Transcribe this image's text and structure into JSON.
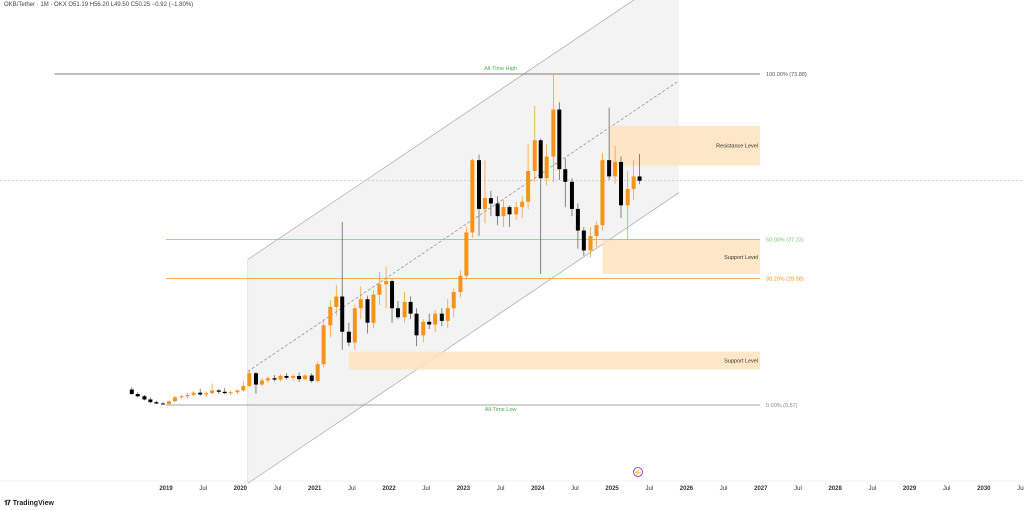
{
  "header": {
    "symbol": "OKB/Tether",
    "interval": "1M",
    "exchange": "OKX",
    "ohlc": "O51.19 H56.20 L49.50 C50.25 −0.92 (−1.80%)"
  },
  "brand": {
    "name": "TradingView",
    "icon": "tradingview-logo-icon"
  },
  "colors": {
    "up": "#f7931a",
    "down": "#000000",
    "channel_fill": "#efefef",
    "zone_fill": "#fde3bd",
    "fib_100": "#555555",
    "fib_50": "#7cc47c",
    "fib_382": "#f7931a",
    "fib_0": "#888888",
    "annotation_green": "#4caf50",
    "event_icon": "#9c27b0"
  },
  "event_marker": {
    "label": "⚡",
    "icon": "lightning-event-icon"
  },
  "chart_data": {
    "type": "candlestick",
    "x_axis": {
      "ticks": [
        {
          "label": "2019",
          "t": 2019.0
        },
        {
          "label": "Jul",
          "t": 2019.5
        },
        {
          "label": "2020",
          "t": 2020.0
        },
        {
          "label": "Jul",
          "t": 2020.5
        },
        {
          "label": "2021",
          "t": 2021.0
        },
        {
          "label": "Jul",
          "t": 2021.5
        },
        {
          "label": "2022",
          "t": 2022.0
        },
        {
          "label": "Jul",
          "t": 2022.5
        },
        {
          "label": "2023",
          "t": 2023.0
        },
        {
          "label": "Jul",
          "t": 2023.5
        },
        {
          "label": "2024",
          "t": 2024.0
        },
        {
          "label": "Jul",
          "t": 2024.5
        },
        {
          "label": "2025",
          "t": 2025.0
        },
        {
          "label": "Jul",
          "t": 2025.5
        },
        {
          "label": "2026",
          "t": 2026.0
        },
        {
          "label": "Jul",
          "t": 2026.5
        },
        {
          "label": "2027",
          "t": 2027.0
        },
        {
          "label": "Jul",
          "t": 2027.5
        },
        {
          "label": "2028",
          "t": 2028.0
        },
        {
          "label": "Jul",
          "t": 2028.5
        },
        {
          "label": "2029",
          "t": 2029.0
        },
        {
          "label": "Jul",
          "t": 2029.5
        },
        {
          "label": "2030",
          "t": 2030.0
        },
        {
          "label": "Jul",
          "t": 2030.5
        }
      ]
    },
    "candles": [
      {
        "t": 2018.54,
        "o": 4.0,
        "h": 4.5,
        "l": 2.8,
        "c": 3.0
      },
      {
        "t": 2018.62,
        "o": 3.0,
        "h": 3.4,
        "l": 2.3,
        "c": 2.5
      },
      {
        "t": 2018.71,
        "o": 2.5,
        "h": 2.8,
        "l": 1.6,
        "c": 1.8
      },
      {
        "t": 2018.79,
        "o": 1.8,
        "h": 2.2,
        "l": 1.0,
        "c": 1.2
      },
      {
        "t": 2018.87,
        "o": 1.2,
        "h": 1.5,
        "l": 0.8,
        "c": 0.9
      },
      {
        "t": 2018.96,
        "o": 0.9,
        "h": 1.2,
        "l": 0.7,
        "c": 0.8
      },
      {
        "t": 2019.04,
        "o": 0.8,
        "h": 1.6,
        "l": 0.7,
        "c": 1.4
      },
      {
        "t": 2019.12,
        "o": 1.4,
        "h": 2.6,
        "l": 1.2,
        "c": 2.3
      },
      {
        "t": 2019.21,
        "o": 2.3,
        "h": 2.8,
        "l": 2.0,
        "c": 2.5
      },
      {
        "t": 2019.29,
        "o": 2.5,
        "h": 3.2,
        "l": 2.1,
        "c": 2.8
      },
      {
        "t": 2019.37,
        "o": 2.8,
        "h": 3.6,
        "l": 2.5,
        "c": 3.3
      },
      {
        "t": 2019.46,
        "o": 3.3,
        "h": 4.2,
        "l": 2.6,
        "c": 2.9
      },
      {
        "t": 2019.54,
        "o": 2.9,
        "h": 3.6,
        "l": 2.2,
        "c": 3.2
      },
      {
        "t": 2019.62,
        "o": 3.2,
        "h": 5.3,
        "l": 2.9,
        "c": 3.8
      },
      {
        "t": 2019.71,
        "o": 3.8,
        "h": 4.1,
        "l": 3.0,
        "c": 3.5
      },
      {
        "t": 2019.79,
        "o": 3.5,
        "h": 4.3,
        "l": 3.0,
        "c": 3.2
      },
      {
        "t": 2019.87,
        "o": 3.2,
        "h": 3.8,
        "l": 2.7,
        "c": 3.4
      },
      {
        "t": 2019.96,
        "o": 3.4,
        "h": 4.0,
        "l": 3.0,
        "c": 3.8
      },
      {
        "t": 2020.04,
        "o": 3.8,
        "h": 5.8,
        "l": 3.5,
        "c": 4.8
      },
      {
        "t": 2020.12,
        "o": 4.8,
        "h": 8.2,
        "l": 4.5,
        "c": 7.6
      },
      {
        "t": 2020.21,
        "o": 7.6,
        "h": 7.9,
        "l": 3.1,
        "c": 5.1
      },
      {
        "t": 2020.29,
        "o": 5.1,
        "h": 6.5,
        "l": 4.8,
        "c": 6.0
      },
      {
        "t": 2020.37,
        "o": 6.0,
        "h": 6.9,
        "l": 5.5,
        "c": 6.5
      },
      {
        "t": 2020.46,
        "o": 6.5,
        "h": 7.2,
        "l": 5.8,
        "c": 6.2
      },
      {
        "t": 2020.54,
        "o": 6.2,
        "h": 7.4,
        "l": 5.8,
        "c": 7.0
      },
      {
        "t": 2020.62,
        "o": 7.0,
        "h": 7.6,
        "l": 6.2,
        "c": 6.6
      },
      {
        "t": 2020.71,
        "o": 6.6,
        "h": 7.3,
        "l": 6.0,
        "c": 7.0
      },
      {
        "t": 2020.79,
        "o": 7.0,
        "h": 7.8,
        "l": 5.7,
        "c": 6.3
      },
      {
        "t": 2020.87,
        "o": 6.3,
        "h": 7.4,
        "l": 6.0,
        "c": 7.1
      },
      {
        "t": 2020.96,
        "o": 7.1,
        "h": 7.6,
        "l": 5.5,
        "c": 5.9
      },
      {
        "t": 2021.04,
        "o": 5.9,
        "h": 10.2,
        "l": 5.6,
        "c": 9.6
      },
      {
        "t": 2021.12,
        "o": 9.6,
        "h": 19.5,
        "l": 9.0,
        "c": 18.2
      },
      {
        "t": 2021.21,
        "o": 18.2,
        "h": 23.8,
        "l": 15.6,
        "c": 22.3
      },
      {
        "t": 2021.29,
        "o": 22.3,
        "h": 27.2,
        "l": 20.4,
        "c": 24.6
      },
      {
        "t": 2021.37,
        "o": 24.6,
        "h": 41.1,
        "l": 12.8,
        "c": 16.8
      },
      {
        "t": 2021.46,
        "o": 16.8,
        "h": 18.8,
        "l": 13.6,
        "c": 14.4
      },
      {
        "t": 2021.54,
        "o": 14.4,
        "h": 22.8,
        "l": 12.8,
        "c": 22.0
      },
      {
        "t": 2021.62,
        "o": 22.0,
        "h": 26.8,
        "l": 19.6,
        "c": 24.0
      },
      {
        "t": 2021.71,
        "o": 24.0,
        "h": 24.8,
        "l": 16.4,
        "c": 18.8
      },
      {
        "t": 2021.79,
        "o": 18.8,
        "h": 26.0,
        "l": 17.6,
        "c": 25.0
      },
      {
        "t": 2021.87,
        "o": 25.0,
        "h": 30.0,
        "l": 22.8,
        "c": 27.3
      },
      {
        "t": 2021.96,
        "o": 27.3,
        "h": 31.2,
        "l": 22.0,
        "c": 28.0
      },
      {
        "t": 2022.04,
        "o": 28.0,
        "h": 28.4,
        "l": 18.8,
        "c": 22.0
      },
      {
        "t": 2022.12,
        "o": 22.0,
        "h": 23.6,
        "l": 19.6,
        "c": 20.0
      },
      {
        "t": 2022.21,
        "o": 20.0,
        "h": 25.6,
        "l": 18.8,
        "c": 23.4
      },
      {
        "t": 2022.29,
        "o": 23.4,
        "h": 24.6,
        "l": 19.6,
        "c": 20.8
      },
      {
        "t": 2022.37,
        "o": 20.8,
        "h": 22.0,
        "l": 13.6,
        "c": 16.0
      },
      {
        "t": 2022.46,
        "o": 16.0,
        "h": 19.6,
        "l": 14.4,
        "c": 19.0
      },
      {
        "t": 2022.54,
        "o": 19.0,
        "h": 20.8,
        "l": 17.4,
        "c": 18.4
      },
      {
        "t": 2022.62,
        "o": 18.4,
        "h": 21.6,
        "l": 16.8,
        "c": 20.8
      },
      {
        "t": 2022.71,
        "o": 20.8,
        "h": 22.0,
        "l": 18.0,
        "c": 19.2
      },
      {
        "t": 2022.79,
        "o": 19.2,
        "h": 24.0,
        "l": 17.6,
        "c": 22.0
      },
      {
        "t": 2022.87,
        "o": 22.0,
        "h": 26.4,
        "l": 20.0,
        "c": 25.6
      },
      {
        "t": 2022.96,
        "o": 25.6,
        "h": 30.4,
        "l": 24.4,
        "c": 29.2
      },
      {
        "t": 2023.04,
        "o": 29.2,
        "h": 40.0,
        "l": 28.4,
        "c": 38.8
      },
      {
        "t": 2023.12,
        "o": 38.8,
        "h": 55.2,
        "l": 37.6,
        "c": 54.8
      },
      {
        "t": 2023.21,
        "o": 54.8,
        "h": 56.0,
        "l": 38.0,
        "c": 44.0
      },
      {
        "t": 2023.29,
        "o": 44.0,
        "h": 54.8,
        "l": 40.8,
        "c": 46.4
      },
      {
        "t": 2023.37,
        "o": 46.4,
        "h": 48.0,
        "l": 42.4,
        "c": 45.2
      },
      {
        "t": 2023.46,
        "o": 45.2,
        "h": 46.8,
        "l": 40.4,
        "c": 42.4
      },
      {
        "t": 2023.54,
        "o": 42.4,
        "h": 46.0,
        "l": 40.0,
        "c": 44.4
      },
      {
        "t": 2023.62,
        "o": 44.4,
        "h": 44.8,
        "l": 40.0,
        "c": 42.8
      },
      {
        "t": 2023.71,
        "o": 42.8,
        "h": 45.6,
        "l": 41.6,
        "c": 44.4
      },
      {
        "t": 2023.79,
        "o": 44.4,
        "h": 46.8,
        "l": 42.0,
        "c": 45.6
      },
      {
        "t": 2023.87,
        "o": 45.6,
        "h": 58.4,
        "l": 44.0,
        "c": 52.4
      },
      {
        "t": 2023.96,
        "o": 52.4,
        "h": 66.8,
        "l": 50.0,
        "c": 59.2
      },
      {
        "t": 2024.04,
        "o": 59.2,
        "h": 59.6,
        "l": 29.6,
        "c": 50.8
      },
      {
        "t": 2024.12,
        "o": 50.8,
        "h": 58.4,
        "l": 49.2,
        "c": 55.6
      },
      {
        "t": 2024.21,
        "o": 55.6,
        "h": 73.9,
        "l": 50.0,
        "c": 66.0
      },
      {
        "t": 2024.29,
        "o": 66.0,
        "h": 67.6,
        "l": 50.4,
        "c": 52.8
      },
      {
        "t": 2024.37,
        "o": 52.8,
        "h": 55.2,
        "l": 44.4,
        "c": 50.0
      },
      {
        "t": 2024.46,
        "o": 50.0,
        "h": 50.8,
        "l": 42.4,
        "c": 44.0
      },
      {
        "t": 2024.54,
        "o": 44.0,
        "h": 45.2,
        "l": 35.2,
        "c": 39.2
      },
      {
        "t": 2024.62,
        "o": 39.2,
        "h": 40.0,
        "l": 33.6,
        "c": 34.8
      },
      {
        "t": 2024.71,
        "o": 34.8,
        "h": 40.0,
        "l": 33.2,
        "c": 38.0
      },
      {
        "t": 2024.79,
        "o": 38.0,
        "h": 41.2,
        "l": 35.6,
        "c": 40.4
      },
      {
        "t": 2024.87,
        "o": 40.4,
        "h": 56.4,
        "l": 39.2,
        "c": 54.8
      },
      {
        "t": 2024.96,
        "o": 54.8,
        "h": 66.4,
        "l": 50.4,
        "c": 51.2
      },
      {
        "t": 2025.04,
        "o": 51.2,
        "h": 58.0,
        "l": 49.6,
        "c": 54.4
      },
      {
        "t": 2025.12,
        "o": 54.4,
        "h": 55.6,
        "l": 42.0,
        "c": 44.8
      },
      {
        "t": 2025.21,
        "o": 44.8,
        "h": 52.4,
        "l": 37.2,
        "c": 48.4
      },
      {
        "t": 2025.29,
        "o": 48.4,
        "h": 54.8,
        "l": 46.0,
        "c": 51.2
      },
      {
        "t": 2025.37,
        "o": 51.19,
        "h": 56.2,
        "l": 49.5,
        "c": 50.25
      }
    ],
    "fibonacci": [
      {
        "label": "100.00% (73.88)",
        "value": 73.88,
        "color": "#555555"
      },
      {
        "label": "50.00% (37.23)",
        "value": 37.23,
        "color": "#7cc47c"
      },
      {
        "label": "38.20% (28.58)",
        "value": 28.58,
        "color": "#f7931a"
      },
      {
        "label": "0.00% (0.57)",
        "value": 0.57,
        "color": "#888888"
      }
    ],
    "annotations": [
      {
        "label": "All-Time High",
        "value": 73.88
      },
      {
        "label": "All-Time Low",
        "value": 0.57
      }
    ],
    "zones": [
      {
        "label": "Resistance Level",
        "t_start": 2024.96,
        "t_end": 2026.99,
        "top": 62.4,
        "bottom": 53.6
      },
      {
        "label": "Support Level",
        "t_start": 2024.87,
        "t_end": 2026.99,
        "top": 37.2,
        "bottom": 29.6
      },
      {
        "label": "Support Level",
        "t_start": 2021.46,
        "t_end": 2026.99,
        "top": 12.4,
        "bottom": 8.4
      }
    ],
    "channel": {
      "t_start": 2020.1,
      "t_end": 2025.9,
      "upper_start": 32.8,
      "upper_end": 97.0,
      "lower_start": -16.8,
      "lower_end": 47.6,
      "mid_start": 8.0,
      "mid_end": 72.4
    },
    "current_price": 50.25,
    "y_range": [
      -20,
      100
    ]
  }
}
